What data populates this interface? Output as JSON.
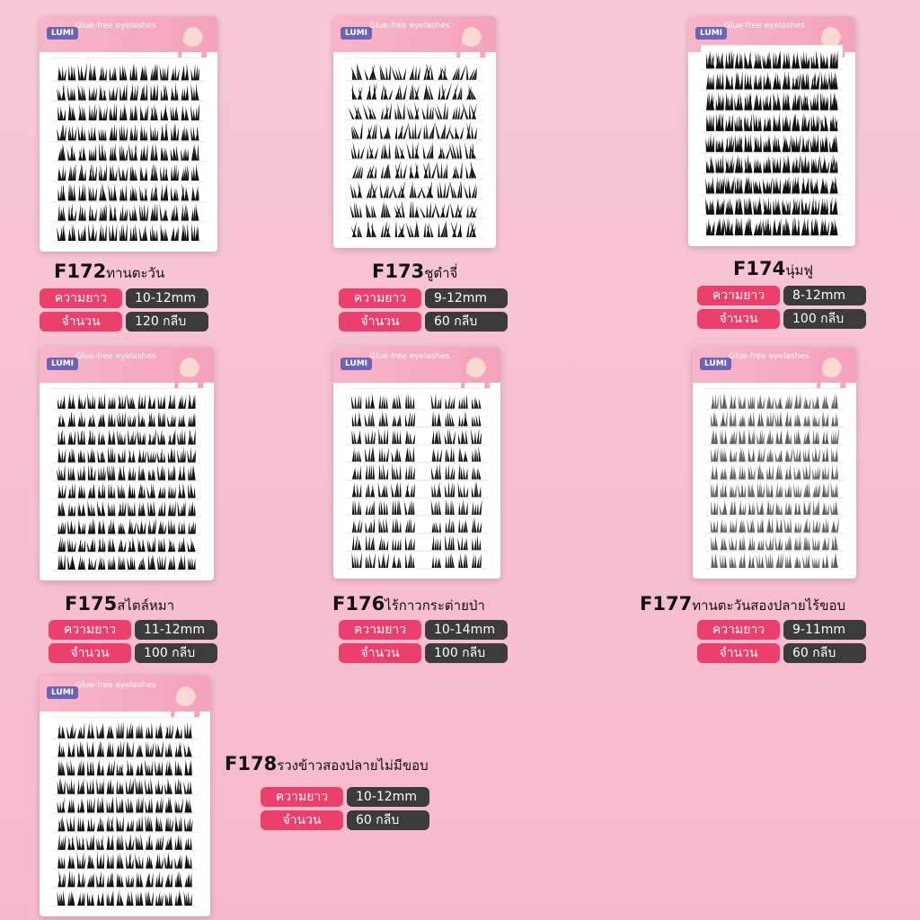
{
  "card_brand": "LUMI",
  "card_subtitle": "Glue-free eyelashes",
  "length_label": "ความยาว",
  "quantity_label": "จำนวน",
  "products": [
    {
      "code": "F172",
      "name": "ทานตะวัน",
      "length": "10-12mm",
      "quantity": "120 กลีบ",
      "style": "dense",
      "rows": 9
    },
    {
      "code": "F173",
      "name": "ชูตำจี่",
      "length": "9-12mm",
      "quantity": "60 กลีบ",
      "style": "wispy",
      "rows": 9
    },
    {
      "code": "F174",
      "name": "นุ่มฟู",
      "length": "8-12mm",
      "quantity": "100 กลีบ",
      "style": "fluffy",
      "rows": 9
    },
    {
      "code": "F175",
      "name": "สไตล์หมา",
      "length": "11-12mm",
      "quantity": "100 กลีบ",
      "style": "spiky",
      "rows": 10
    },
    {
      "code": "F176",
      "name": "ไร้กาวกระต่ายป่า",
      "length": "10-14mm",
      "quantity": "100 กลีบ",
      "style": "cluster",
      "rows": 10
    },
    {
      "code": "F177",
      "name": "ทานตะวันสองปลายไร้ขอบ",
      "length": "9-11mm",
      "quantity": "60 กลีบ",
      "style": "light",
      "rows": 10
    },
    {
      "code": "F178",
      "name": "รวงข้าวสองปลายไม่มีขอบ",
      "length": "10-12mm",
      "quantity": "60 กลีบ",
      "style": "spiky2",
      "rows": 10
    }
  ],
  "colors": {
    "label_pink": "#ec3f6c",
    "value_dark": "#3b3b3b",
    "brand_purple": "#6a63b8",
    "lash": "#111111"
  }
}
